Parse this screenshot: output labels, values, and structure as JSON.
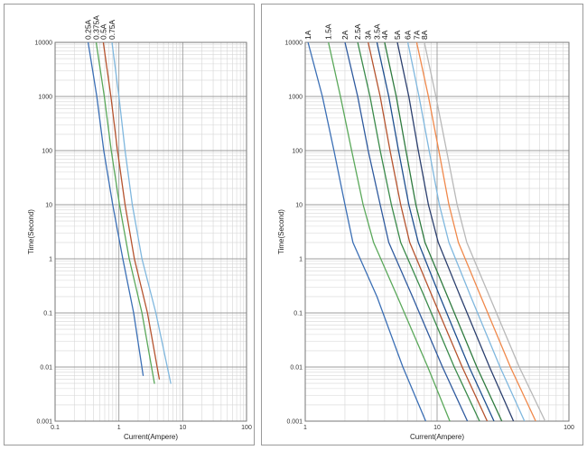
{
  "chart_data": [
    {
      "type": "line",
      "xlabel": "Current(Ampere)",
      "ylabel": "Time(Second)",
      "xscale": "log",
      "yscale": "log",
      "xlim": [
        0.1,
        100
      ],
      "ylim": [
        0.001,
        10000
      ],
      "xtick_labels": [
        "0.1",
        "1",
        "10",
        "100"
      ],
      "ytick_labels": [
        "0.001",
        "0.01",
        "0.1",
        "1",
        "10",
        "100",
        "1000",
        "10000"
      ],
      "grid": true,
      "series": [
        {
          "name": "0.25A",
          "color": "#3b6fb5",
          "x": [
            0.33,
            0.45,
            0.58,
            0.8,
            1.15,
            1.7,
            2.4
          ],
          "y": [
            10000,
            1000,
            100,
            10,
            1,
            0.1,
            0.007
          ]
        },
        {
          "name": "0.375A",
          "color": "#5aa85a",
          "x": [
            0.44,
            0.59,
            0.76,
            1.02,
            1.45,
            2.3,
            3.6
          ],
          "y": [
            10000,
            1000,
            100,
            10,
            1,
            0.1,
            0.005
          ]
        },
        {
          "name": "0.5A",
          "color": "#b5532e",
          "x": [
            0.57,
            0.75,
            0.95,
            1.25,
            1.75,
            2.8,
            4.3
          ],
          "y": [
            10000,
            1000,
            100,
            10,
            1,
            0.1,
            0.006
          ]
        },
        {
          "name": "0.75A",
          "color": "#7fb7de",
          "x": [
            0.78,
            1.0,
            1.25,
            1.62,
            2.3,
            3.8,
            6.5
          ],
          "y": [
            10000,
            1000,
            100,
            10,
            1,
            0.1,
            0.005
          ]
        }
      ]
    },
    {
      "type": "line",
      "xlabel": "Current(Ampere)",
      "ylabel": "Time(Second)",
      "xscale": "log",
      "yscale": "log",
      "xlim": [
        1,
        100
      ],
      "ylim": [
        0.001,
        10000
      ],
      "xtick_labels": [
        "1",
        "10",
        "100"
      ],
      "ytick_labels": [
        "0.001",
        "0.01",
        "0.1",
        "1",
        "10",
        "100",
        "1000",
        "10000"
      ],
      "grid": true,
      "series": [
        {
          "name": "1A",
          "color": "#3b6fb5",
          "x": [
            1.05,
            1.35,
            1.65,
            2.0,
            2.3,
            3.5,
            5.5,
            8.2
          ],
          "y": [
            10000,
            1000,
            100,
            10,
            2,
            0.2,
            0.01,
            0.001
          ]
        },
        {
          "name": "1.5A",
          "color": "#5aa85a",
          "x": [
            1.5,
            1.85,
            2.25,
            2.75,
            3.3,
            5.0,
            8.5,
            12.5
          ],
          "y": [
            10000,
            1000,
            100,
            10,
            2,
            0.2,
            0.01,
            0.001
          ]
        },
        {
          "name": "2A",
          "color": "#2f5a9e",
          "x": [
            2.0,
            2.5,
            3.0,
            3.7,
            4.3,
            6.5,
            11,
            17
          ],
          "y": [
            10000,
            1000,
            100,
            10,
            2,
            0.2,
            0.01,
            0.001
          ]
        },
        {
          "name": "2.5A",
          "color": "#3a8a4a",
          "x": [
            2.5,
            3.1,
            3.7,
            4.5,
            5.3,
            8.0,
            13.5,
            21
          ],
          "y": [
            10000,
            1000,
            100,
            10,
            2,
            0.2,
            0.01,
            0.001
          ]
        },
        {
          "name": "3A",
          "color": "#b5532e",
          "x": [
            3.0,
            3.7,
            4.4,
            5.3,
            6.2,
            9.2,
            15.5,
            24
          ],
          "y": [
            10000,
            1000,
            100,
            10,
            2,
            0.2,
            0.01,
            0.001
          ]
        },
        {
          "name": "3.5A",
          "color": "#1f4f8f",
          "x": [
            3.5,
            4.3,
            5.1,
            6.1,
            7.2,
            10.5,
            17.5,
            27
          ],
          "y": [
            10000,
            1000,
            100,
            10,
            2,
            0.2,
            0.01,
            0.001
          ]
        },
        {
          "name": "4A",
          "color": "#2e7a3e",
          "x": [
            4.0,
            4.9,
            5.8,
            6.9,
            8.1,
            12,
            20,
            31
          ],
          "y": [
            10000,
            1000,
            100,
            10,
            2,
            0.2,
            0.01,
            0.001
          ]
        },
        {
          "name": "5A",
          "color": "#2b3f6e",
          "x": [
            5.0,
            6.1,
            7.2,
            8.6,
            10.2,
            15,
            25,
            38
          ],
          "y": [
            10000,
            1000,
            100,
            10,
            2,
            0.2,
            0.01,
            0.001
          ]
        },
        {
          "name": "6A",
          "color": "#7fb7de",
          "x": [
            6.0,
            7.3,
            8.7,
            10.4,
            12.3,
            18,
            30,
            46
          ],
          "y": [
            10000,
            1000,
            100,
            10,
            2,
            0.2,
            0.01,
            0.001
          ]
        },
        {
          "name": "7A",
          "color": "#f0884a",
          "x": [
            7.0,
            8.6,
            10.3,
            12.3,
            14.5,
            21.5,
            36,
            56
          ],
          "y": [
            10000,
            1000,
            100,
            10,
            2,
            0.2,
            0.01,
            0.001
          ]
        },
        {
          "name": "8A",
          "color": "#b8b8b8",
          "x": [
            8.0,
            9.8,
            11.8,
            14.2,
            16.8,
            25,
            42,
            66
          ],
          "y": [
            10000,
            1000,
            100,
            10,
            2,
            0.2,
            0.01,
            0.001
          ]
        }
      ]
    }
  ]
}
